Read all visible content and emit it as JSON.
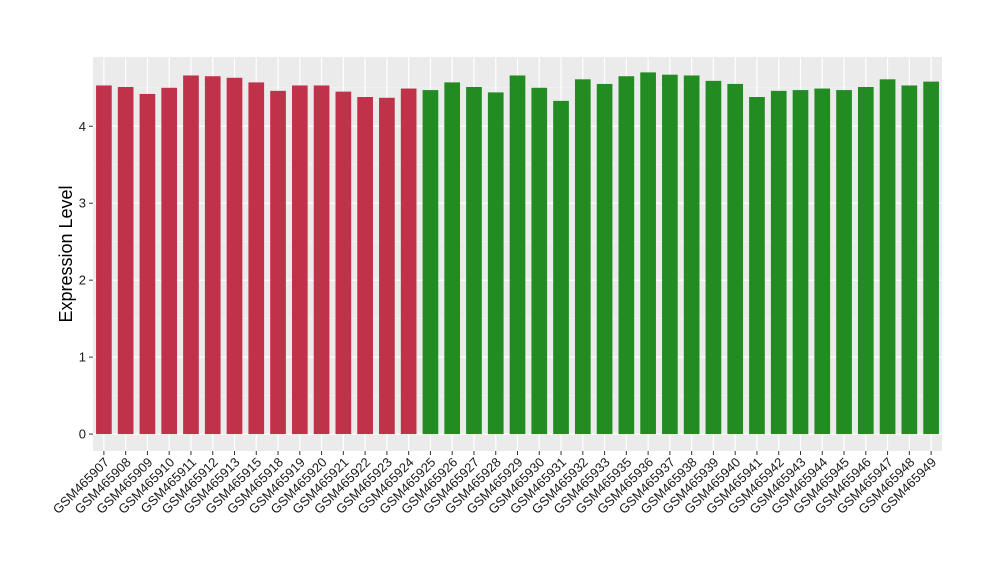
{
  "colors": {
    "panel_background": "#ebebeb",
    "grid_major": "#ffffff",
    "group_1": "#c0314a",
    "group_2": "#228b22"
  },
  "chart_data": {
    "type": "bar",
    "ylabel": "Expression Level",
    "xlabel": "",
    "ylim": [
      -0.22,
      4.9
    ],
    "yticks": [
      0,
      1,
      2,
      3,
      4
    ],
    "grid": true,
    "legend": "none",
    "categories": [
      "GSM465907",
      "GSM465908",
      "GSM465909",
      "GSM465910",
      "GSM465911",
      "GSM465912",
      "GSM465913",
      "GSM465915",
      "GSM465918",
      "GSM465919",
      "GSM465920",
      "GSM465921",
      "GSM465922",
      "GSM465923",
      "GSM465924",
      "GSM465925",
      "GSM465926",
      "GSM465927",
      "GSM465928",
      "GSM465929",
      "GSM465930",
      "GSM465931",
      "GSM465932",
      "GSM465933",
      "GSM465935",
      "GSM465936",
      "GSM465937",
      "GSM465938",
      "GSM465939",
      "GSM465940",
      "GSM465941",
      "GSM465942",
      "GSM465943",
      "GSM465944",
      "GSM465945",
      "GSM465946",
      "GSM465947",
      "GSM465948",
      "GSM465949"
    ],
    "values": [
      4.53,
      4.51,
      4.42,
      4.5,
      4.66,
      4.65,
      4.63,
      4.57,
      4.46,
      4.53,
      4.53,
      4.45,
      4.38,
      4.37,
      4.49,
      4.47,
      4.57,
      4.51,
      4.44,
      4.66,
      4.5,
      4.33,
      4.61,
      4.55,
      4.65,
      4.7,
      4.67,
      4.66,
      4.59,
      4.55,
      4.38,
      4.46,
      4.47,
      4.49,
      4.47,
      4.51,
      4.61,
      4.53,
      4.58
    ],
    "groups": [
      1,
      1,
      1,
      1,
      1,
      1,
      1,
      1,
      1,
      1,
      1,
      1,
      1,
      1,
      1,
      2,
      2,
      2,
      2,
      2,
      2,
      2,
      2,
      2,
      2,
      2,
      2,
      2,
      2,
      2,
      2,
      2,
      2,
      2,
      2,
      2,
      2,
      2,
      2
    ]
  }
}
